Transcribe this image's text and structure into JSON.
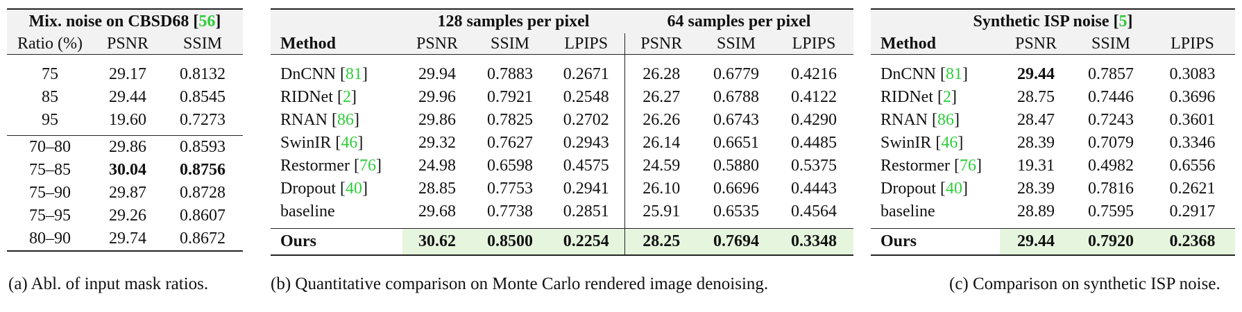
{
  "table_a": {
    "title_text": "Mix. noise on CBSD68",
    "title_ref": "56",
    "columns": [
      "Ratio (%)",
      "PSNR",
      "SSIM"
    ],
    "group1": [
      [
        "75",
        "29.17",
        "0.8132"
      ],
      [
        "85",
        "29.44",
        "0.8545"
      ],
      [
        "95",
        "19.60",
        "0.7273"
      ]
    ],
    "group2": [
      [
        "70–80",
        "29.86",
        "0.8593"
      ],
      [
        "75–85",
        "30.04",
        "0.8756"
      ],
      [
        "75–90",
        "29.87",
        "0.8728"
      ],
      [
        "75–95",
        "29.26",
        "0.8607"
      ],
      [
        "80–90",
        "29.74",
        "0.8672"
      ]
    ],
    "caption": "(a) Abl. of input mask ratios."
  },
  "table_b": {
    "group_headers": [
      "128 samples per pixel",
      "64 samples per pixel"
    ],
    "method_header": "Method",
    "metric_headers": [
      "PSNR",
      "SSIM",
      "LPIPS",
      "PSNR",
      "SSIM",
      "LPIPS"
    ],
    "rows": [
      {
        "method": "DnCNN",
        "ref": "81",
        "vals": [
          "29.94",
          "0.7883",
          "0.2671",
          "26.28",
          "0.6779",
          "0.4216"
        ]
      },
      {
        "method": "RIDNet",
        "ref": "2",
        "vals": [
          "29.96",
          "0.7921",
          "0.2548",
          "26.27",
          "0.6788",
          "0.4122"
        ]
      },
      {
        "method": "RNAN",
        "ref": "86",
        "vals": [
          "29.86",
          "0.7825",
          "0.2702",
          "26.26",
          "0.6743",
          "0.4290"
        ]
      },
      {
        "method": "SwinIR",
        "ref": "46",
        "vals": [
          "29.32",
          "0.7627",
          "0.2943",
          "26.14",
          "0.6651",
          "0.4485"
        ]
      },
      {
        "method": "Restormer",
        "ref": "76",
        "vals": [
          "24.98",
          "0.6598",
          "0.4575",
          "24.59",
          "0.5880",
          "0.5375"
        ]
      },
      {
        "method": "Dropout",
        "ref": "40",
        "vals": [
          "28.85",
          "0.7753",
          "0.2941",
          "26.10",
          "0.6696",
          "0.4443"
        ]
      },
      {
        "method": "baseline",
        "ref": "",
        "vals": [
          "29.68",
          "0.7738",
          "0.2851",
          "25.91",
          "0.6535",
          "0.4564"
        ]
      }
    ],
    "ours": {
      "method": "Ours",
      "vals": [
        "30.62",
        "0.8500",
        "0.2254",
        "28.25",
        "0.7694",
        "0.3348"
      ]
    },
    "caption": "(b) Quantitative comparison on Monte Carlo rendered image denoising."
  },
  "table_c": {
    "title_text": "Synthetic ISP noise",
    "title_ref": "5",
    "method_header": "Method",
    "metric_headers": [
      "PSNR",
      "SSIM",
      "LPIPS"
    ],
    "rows": [
      {
        "method": "DnCNN",
        "ref": "81",
        "vals": [
          "29.44",
          "0.7857",
          "0.3083"
        ]
      },
      {
        "method": "RIDNet",
        "ref": "2",
        "vals": [
          "28.75",
          "0.7446",
          "0.3696"
        ]
      },
      {
        "method": "RNAN",
        "ref": "86",
        "vals": [
          "28.47",
          "0.7243",
          "0.3601"
        ]
      },
      {
        "method": "SwinIR",
        "ref": "46",
        "vals": [
          "28.39",
          "0.7079",
          "0.3346"
        ]
      },
      {
        "method": "Restormer",
        "ref": "76",
        "vals": [
          "19.31",
          "0.4982",
          "0.6556"
        ]
      },
      {
        "method": "Dropout",
        "ref": "40",
        "vals": [
          "28.39",
          "0.7816",
          "0.2621"
        ]
      },
      {
        "method": "baseline",
        "ref": "",
        "vals": [
          "28.89",
          "0.7595",
          "0.2917"
        ]
      }
    ],
    "ours": {
      "method": "Ours",
      "vals": [
        "29.44",
        "0.7920",
        "0.2368"
      ]
    },
    "caption": "(c) Comparison on synthetic ISP noise."
  },
  "colors": {
    "reference_link": "#2ecc3a",
    "header_shade": "#f2f2f2",
    "ours_highlight": "#e6f5de"
  }
}
